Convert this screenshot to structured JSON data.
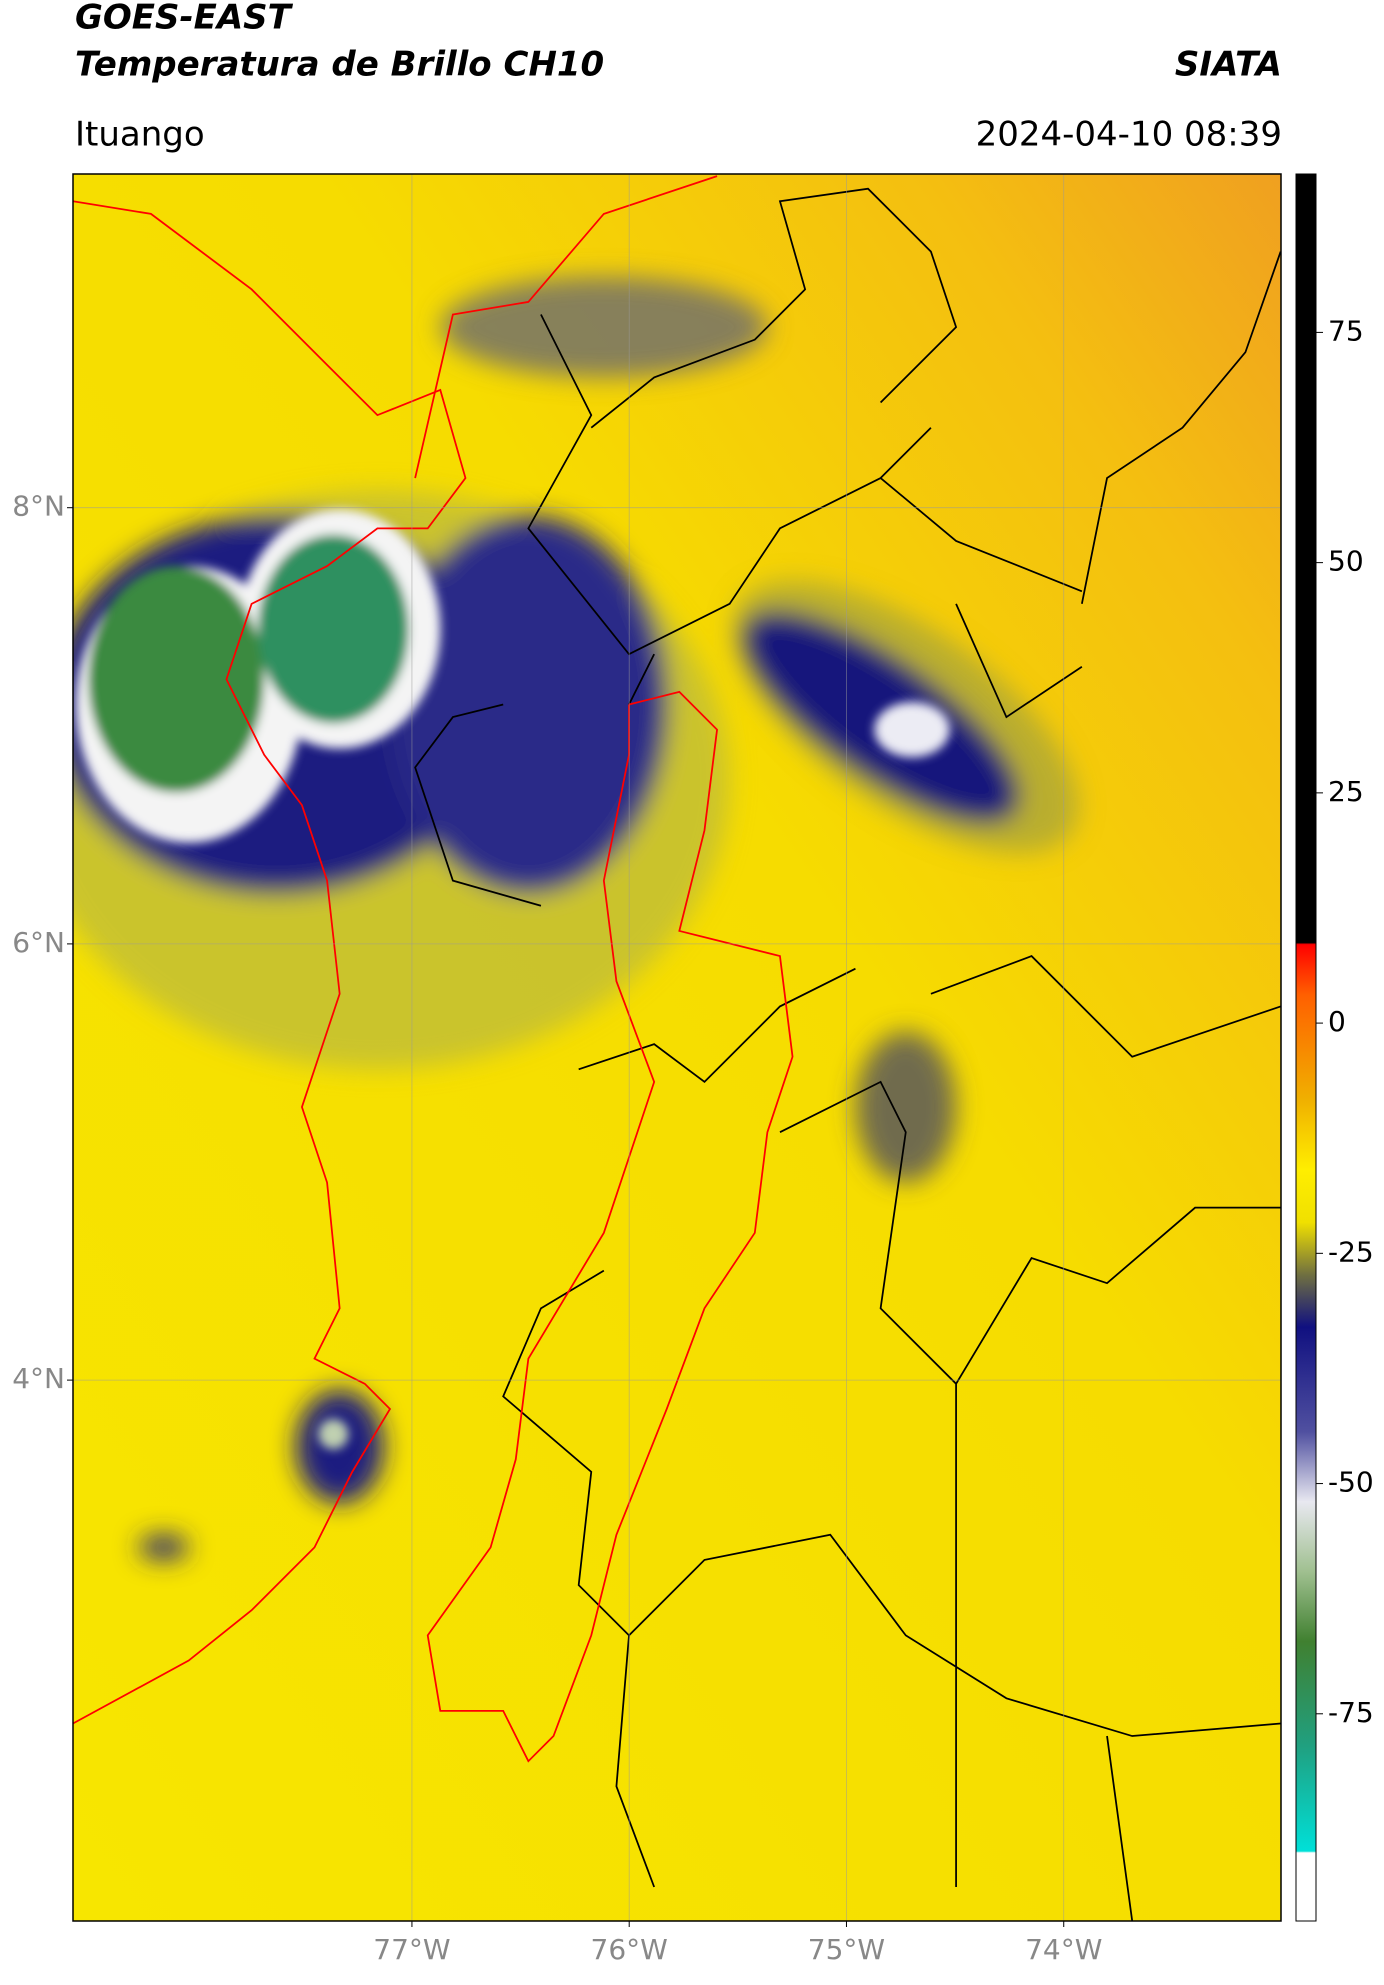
{
  "header": {
    "title_line1": "GOES-EAST",
    "title_line2": "Temperatura de Brillo CH10",
    "brand": "SIATA",
    "location": "Ituango",
    "datetime": "2024-04-10 08:39"
  },
  "map": {
    "xlim": [
      -78.56,
      -73.0
    ],
    "ylim": [
      1.52,
      9.53
    ],
    "xticks": [
      {
        "value": -77,
        "label": "77°W"
      },
      {
        "value": -76,
        "label": "76°W"
      },
      {
        "value": -75,
        "label": "75°W"
      },
      {
        "value": -74,
        "label": "74°W"
      }
    ],
    "yticks": [
      {
        "value": 8,
        "label": "8°N"
      },
      {
        "value": 6,
        "label": "6°N"
      },
      {
        "value": 4,
        "label": "4°N"
      }
    ]
  },
  "colorbar": {
    "lim": [
      -97.5,
      92.2
    ],
    "ticks": [
      75,
      50,
      25,
      0,
      -25,
      -50,
      -75
    ]
  }
}
